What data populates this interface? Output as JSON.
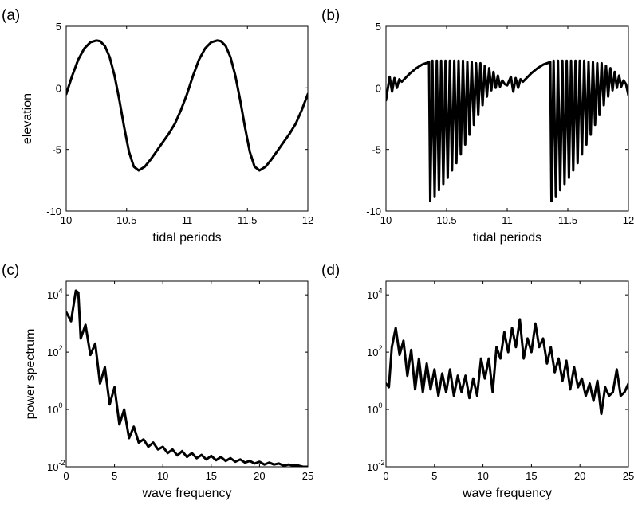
{
  "chart_data": [
    {
      "id": "a",
      "type": "line",
      "panel_label": "(a)",
      "title": "",
      "xlabel": "tidal periods",
      "ylabel": "elevation",
      "xlim": [
        10,
        12
      ],
      "ylim": [
        -10,
        5
      ],
      "xticks": [
        10,
        10.5,
        11,
        11.5,
        12
      ],
      "xtick_labels": [
        "10",
        "10.5",
        "11",
        "11.5",
        "12"
      ],
      "yticks": [
        -10,
        -5,
        0,
        5
      ],
      "ytick_labels": [
        "-10",
        "-5",
        "0",
        "5"
      ],
      "series": [
        {
          "x": [
            10.0,
            10.05,
            10.1,
            10.15,
            10.2,
            10.25,
            10.28,
            10.32,
            10.36,
            10.4,
            10.44,
            10.48,
            10.52,
            10.56,
            10.6,
            10.65,
            10.7,
            10.75,
            10.8,
            10.85,
            10.9,
            10.95,
            11.0,
            11.05,
            11.1,
            11.15,
            11.2,
            11.25,
            11.28,
            11.32,
            11.36,
            11.4,
            11.44,
            11.48,
            11.52,
            11.56,
            11.6,
            11.65,
            11.7,
            11.75,
            11.8,
            11.85,
            11.9,
            11.95,
            12.0
          ],
          "y": [
            -0.5,
            1.0,
            2.3,
            3.2,
            3.7,
            3.85,
            3.8,
            3.4,
            2.5,
            1.0,
            -1.0,
            -3.2,
            -5.2,
            -6.4,
            -6.7,
            -6.4,
            -5.8,
            -5.1,
            -4.4,
            -3.7,
            -2.9,
            -1.8,
            -0.5,
            1.0,
            2.3,
            3.2,
            3.7,
            3.85,
            3.8,
            3.4,
            2.5,
            1.0,
            -1.0,
            -3.2,
            -5.2,
            -6.4,
            -6.7,
            -6.4,
            -5.8,
            -5.1,
            -4.4,
            -3.7,
            -2.9,
            -1.8,
            -0.5
          ]
        }
      ]
    },
    {
      "id": "b",
      "type": "line",
      "panel_label": "(b)",
      "title": "",
      "xlabel": "tidal periods",
      "ylabel": "",
      "xlim": [
        10,
        12
      ],
      "ylim": [
        -10,
        5
      ],
      "xticks": [
        10,
        10.5,
        11,
        11.5,
        12
      ],
      "xtick_labels": [
        "10",
        "10.5",
        "11",
        "11.5",
        "12"
      ],
      "yticks": [
        -10,
        -5,
        0,
        5
      ],
      "ytick_labels": [
        "-10",
        "-5",
        "0",
        "5"
      ],
      "series": [
        {
          "x": [
            10.0,
            10.03,
            10.05,
            10.07,
            10.09,
            10.11,
            10.13,
            10.16,
            10.2,
            10.25,
            10.3,
            10.355,
            10.365,
            10.383,
            10.401,
            10.419,
            10.437,
            10.455,
            10.473,
            10.491,
            10.509,
            10.527,
            10.545,
            10.563,
            10.581,
            10.599,
            10.617,
            10.635,
            10.653,
            10.671,
            10.689,
            10.707,
            10.725,
            10.743,
            10.761,
            10.779,
            10.797,
            10.815,
            10.833,
            10.851,
            10.869,
            10.887,
            10.905,
            10.923,
            10.941,
            10.96,
            10.98,
            11.0,
            11.03,
            11.05,
            11.07,
            11.09,
            11.11,
            11.13,
            11.16,
            11.2,
            11.25,
            11.3,
            11.355,
            11.365,
            11.383,
            11.401,
            11.419,
            11.437,
            11.455,
            11.473,
            11.491,
            11.509,
            11.527,
            11.545,
            11.563,
            11.581,
            11.599,
            11.617,
            11.635,
            11.653,
            11.671,
            11.689,
            11.707,
            11.725,
            11.743,
            11.761,
            11.779,
            11.797,
            11.815,
            11.833,
            11.851,
            11.869,
            11.887,
            11.905,
            11.923,
            11.941,
            11.96,
            11.98,
            12.0
          ],
          "y": [
            -1.0,
            0.9,
            -0.3,
            0.8,
            0.0,
            0.7,
            0.5,
            0.8,
            1.2,
            1.6,
            1.9,
            2.1,
            -9.2,
            2.2,
            -8.8,
            2.2,
            -8.3,
            2.2,
            -7.8,
            2.2,
            -7.3,
            2.2,
            -6.7,
            2.2,
            -6.1,
            2.2,
            -5.4,
            2.2,
            -4.6,
            2.1,
            -3.8,
            2.1,
            -3.0,
            2.0,
            -2.2,
            2.0,
            -1.4,
            1.8,
            -0.7,
            1.6,
            -0.2,
            1.3,
            0.0,
            1.0,
            0.1,
            0.6,
            0.3,
            0.2,
            0.9,
            -0.3,
            0.8,
            0.0,
            0.7,
            0.5,
            0.8,
            1.2,
            1.6,
            1.9,
            2.1,
            -9.2,
            2.2,
            -8.8,
            2.2,
            -8.3,
            2.2,
            -7.8,
            2.2,
            -7.3,
            2.2,
            -6.7,
            2.2,
            -6.1,
            2.2,
            -5.4,
            2.2,
            -4.6,
            2.1,
            -3.8,
            2.1,
            -3.0,
            2.0,
            -2.2,
            2.0,
            -1.4,
            1.8,
            -0.7,
            1.6,
            -0.2,
            1.3,
            0.0,
            1.0,
            0.1,
            0.6,
            0.3,
            -0.6
          ]
        }
      ]
    },
    {
      "id": "c",
      "type": "line",
      "panel_label": "(c)",
      "title": "",
      "xlabel": "wave frequency",
      "ylabel": "power spectrum",
      "xlim": [
        0,
        25
      ],
      "ylim": [
        0.01,
        30000
      ],
      "yscale": "log",
      "xticks": [
        0,
        5,
        10,
        15,
        20,
        25
      ],
      "xtick_labels": [
        "0",
        "5",
        "10",
        "15",
        "20",
        "25"
      ],
      "yticks": [
        0.01,
        1,
        100,
        10000
      ],
      "ytick_labels": [
        {
          "base": "10",
          "exp": "-2"
        },
        {
          "base": "10",
          "exp": "0"
        },
        {
          "base": "10",
          "exp": "2"
        },
        {
          "base": "10",
          "exp": "4"
        }
      ],
      "series": [
        {
          "x": [
            0,
            0.5,
            1,
            1.25,
            1.5,
            2,
            2.5,
            3,
            3.5,
            4,
            4.5,
            5,
            5.5,
            6,
            6.5,
            7,
            7.5,
            8,
            8.5,
            9,
            9.5,
            10,
            10.5,
            11,
            11.5,
            12,
            12.5,
            13,
            13.5,
            14,
            14.5,
            15,
            15.5,
            16,
            16.5,
            17,
            17.5,
            18,
            18.5,
            19,
            19.5,
            20,
            20.5,
            21,
            21.5,
            22,
            22.5,
            23,
            23.5,
            24,
            24.5,
            25
          ],
          "y": [
            2500,
            1200,
            14000,
            12000,
            300,
            900,
            80,
            200,
            8,
            30,
            1.5,
            6,
            0.3,
            1.0,
            0.1,
            0.25,
            0.07,
            0.09,
            0.05,
            0.07,
            0.04,
            0.05,
            0.03,
            0.04,
            0.025,
            0.035,
            0.022,
            0.03,
            0.02,
            0.026,
            0.018,
            0.024,
            0.017,
            0.022,
            0.016,
            0.02,
            0.015,
            0.018,
            0.014,
            0.016,
            0.013,
            0.015,
            0.012,
            0.014,
            0.012,
            0.013,
            0.011,
            0.012,
            0.011,
            0.011,
            0.01,
            0.01
          ]
        }
      ]
    },
    {
      "id": "d",
      "type": "line",
      "panel_label": "(d)",
      "title": "",
      "xlabel": "wave frequency",
      "ylabel": "",
      "xlim": [
        0,
        25
      ],
      "ylim": [
        0.01,
        30000
      ],
      "yscale": "log",
      "xticks": [
        0,
        5,
        10,
        15,
        20,
        25
      ],
      "xtick_labels": [
        "0",
        "5",
        "10",
        "15",
        "20",
        "25"
      ],
      "yticks": [
        0.01,
        1,
        100,
        10000
      ],
      "ytick_labels": [
        {
          "base": "10",
          "exp": "-2"
        },
        {
          "base": "10",
          "exp": "0"
        },
        {
          "base": "10",
          "exp": "2"
        },
        {
          "base": "10",
          "exp": "4"
        }
      ],
      "series": [
        {
          "x": [
            0,
            0.3,
            0.6,
            1.0,
            1.4,
            1.8,
            2.2,
            2.6,
            3.0,
            3.4,
            3.8,
            4.2,
            4.6,
            5.0,
            5.4,
            5.8,
            6.2,
            6.6,
            7.0,
            7.4,
            7.8,
            8.2,
            8.6,
            9.0,
            9.4,
            9.8,
            10.2,
            10.6,
            11.0,
            11.4,
            11.8,
            12.2,
            12.6,
            13.0,
            13.4,
            13.8,
            14.2,
            14.6,
            15.0,
            15.4,
            15.8,
            16.2,
            16.6,
            17.0,
            17.4,
            17.8,
            18.2,
            18.6,
            19.0,
            19.4,
            19.8,
            20.2,
            20.6,
            21.0,
            21.4,
            21.8,
            22.2,
            22.6,
            23.0,
            23.4,
            23.8,
            24.2,
            24.6,
            25.0
          ],
          "y": [
            8,
            6,
            150,
            700,
            80,
            250,
            15,
            120,
            5,
            60,
            4,
            40,
            5,
            25,
            3,
            18,
            4,
            25,
            3,
            15,
            4,
            15,
            2.5,
            12,
            3,
            60,
            12,
            60,
            4,
            150,
            60,
            500,
            100,
            700,
            150,
            1400,
            60,
            300,
            100,
            1000,
            150,
            300,
            40,
            150,
            20,
            60,
            10,
            50,
            5,
            30,
            6,
            12,
            3,
            8,
            2,
            10,
            0.7,
            6,
            3,
            4,
            25,
            3,
            4,
            8
          ]
        }
      ]
    }
  ]
}
